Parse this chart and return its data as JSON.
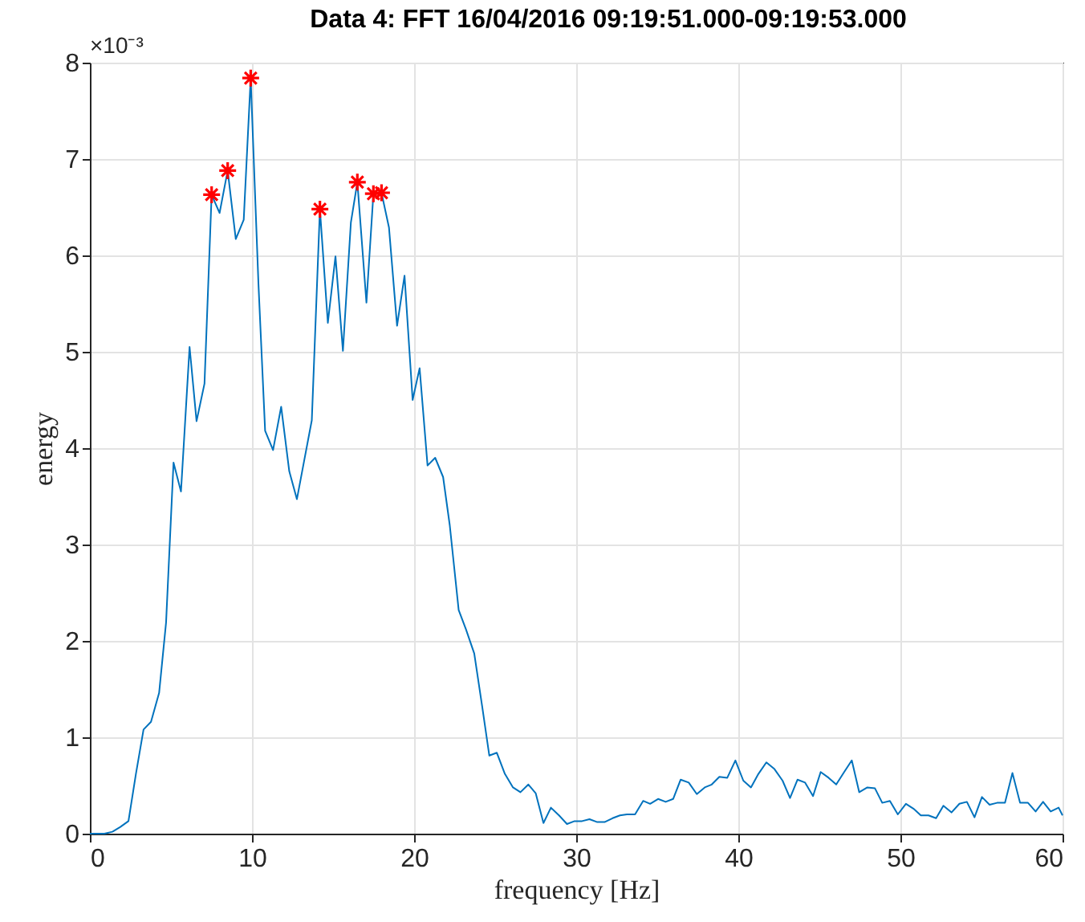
{
  "chart_data": {
    "type": "line",
    "title": "Data 4: FFT 16/04/2016 09:19:51.000-09:19:53.000",
    "xlabel": "frequency [Hz]",
    "ylabel": "energy",
    "annotations": [
      "×10⁻³"
    ],
    "xlim": [
      0,
      60
    ],
    "xticks": [
      0,
      10,
      20,
      30,
      40,
      50,
      60
    ],
    "ylim": [
      0,
      8
    ],
    "yticks": [
      0,
      1,
      2,
      3,
      4,
      5,
      6,
      7,
      8
    ],
    "grid": true,
    "legend": false,
    "series": [
      {
        "type": "line",
        "color": "#0072bd",
        "marker": "none",
        "line_style": "solid",
        "x": [
          0,
          0.4,
          0.9,
          1.39,
          1.88,
          2.38,
          2.84,
          3.31,
          3.77,
          4.27,
          4.7,
          5.16,
          5.62,
          6.15,
          6.58,
          7.07,
          7.51,
          8.0,
          8.5,
          9.0,
          9.49,
          9.92,
          10.4,
          10.81,
          11.3,
          11.8,
          12.3,
          12.77,
          13.23,
          13.69,
          14.19,
          14.68,
          15.15,
          15.61,
          16.1,
          16.5,
          17.06,
          17.49,
          17.99,
          18.45,
          18.95,
          19.41,
          19.91,
          20.34,
          20.83,
          21.3,
          21.79,
          22.2,
          22.75,
          23.2,
          23.71,
          24.2,
          24.64,
          25.1,
          25.6,
          26.1,
          26.56,
          27.05,
          27.5,
          27.98,
          28.44,
          28.94,
          29.43,
          29.9,
          30.36,
          30.82,
          31.3,
          31.75,
          32.24,
          32.7,
          33.13,
          33.63,
          34.13,
          34.56,
          35.05,
          35.52,
          35.98,
          36.44,
          36.94,
          37.44,
          37.93,
          38.36,
          38.83,
          39.32,
          39.82,
          40.31,
          40.78,
          41.24,
          41.73,
          42.23,
          42.73,
          43.19,
          43.65,
          44.12,
          44.61,
          45.08,
          45.57,
          46.04,
          46.53,
          47.0,
          47.46,
          47.96,
          48.43,
          48.88,
          49.35,
          49.84,
          50.34,
          50.8,
          51.26,
          51.73,
          52.2,
          52.65,
          53.15,
          53.64,
          54.1,
          54.57,
          55.03,
          55.5,
          55.96,
          56.45,
          56.91,
          57.38,
          57.87,
          58.34,
          58.8,
          59.27,
          59.76,
          60
        ],
        "values": [
          0,
          0,
          0,
          0.02,
          0.07,
          0.13,
          0.62,
          1.08,
          1.16,
          1.46,
          2.19,
          3.85,
          3.55,
          5.05,
          4.28,
          4.67,
          6.63,
          6.44,
          6.88,
          6.17,
          6.37,
          7.84,
          5.7,
          4.18,
          3.98,
          4.43,
          3.76,
          3.47,
          3.88,
          4.29,
          6.48,
          5.3,
          5.99,
          5.01,
          6.34,
          6.76,
          5.51,
          6.64,
          6.65,
          6.29,
          5.27,
          5.79,
          4.5,
          4.83,
          3.82,
          3.9,
          3.7,
          3.2,
          2.32,
          2.12,
          1.87,
          1.32,
          0.81,
          0.84,
          0.62,
          0.48,
          0.43,
          0.51,
          0.42,
          0.11,
          0.27,
          0.19,
          0.1,
          0.13,
          0.13,
          0.15,
          0.12,
          0.12,
          0.16,
          0.19,
          0.2,
          0.2,
          0.34,
          0.31,
          0.36,
          0.33,
          0.36,
          0.56,
          0.53,
          0.41,
          0.48,
          0.51,
          0.59,
          0.58,
          0.76,
          0.55,
          0.48,
          0.62,
          0.74,
          0.67,
          0.55,
          0.37,
          0.56,
          0.53,
          0.39,
          0.64,
          0.58,
          0.51,
          0.64,
          0.76,
          0.43,
          0.48,
          0.47,
          0.32,
          0.34,
          0.2,
          0.31,
          0.26,
          0.19,
          0.19,
          0.16,
          0.29,
          0.22,
          0.31,
          0.33,
          0.17,
          0.38,
          0.3,
          0.32,
          0.32,
          0.63,
          0.32,
          0.32,
          0.23,
          0.33,
          0.23,
          0.27,
          0.19
        ]
      },
      {
        "type": "scatter",
        "color": "#ff0000",
        "marker": "cross",
        "x": [
          7.51,
          8.5,
          9.92,
          14.19,
          16.5,
          17.49,
          17.99
        ],
        "values": [
          6.63,
          6.88,
          7.84,
          6.48,
          6.76,
          6.64,
          6.65
        ]
      }
    ]
  }
}
